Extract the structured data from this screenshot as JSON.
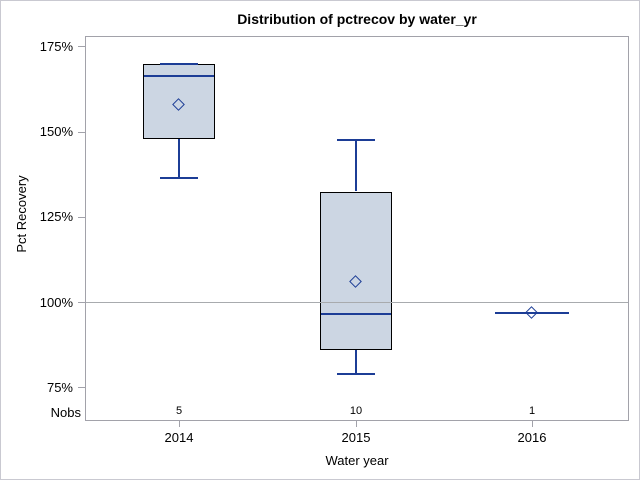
{
  "chart_data": {
    "type": "boxplot",
    "title": "Distribution of pctrecov by water_yr",
    "xlabel": "Water year",
    "ylabel": "Pct Recovery",
    "categories": [
      "2014",
      "2015",
      "2016"
    ],
    "nobs_label": "Nobs",
    "nobs": [
      "5",
      "10",
      "1"
    ],
    "y_ticks": [
      "175%",
      "150%",
      "125%",
      "100%",
      "75%"
    ],
    "y_tick_values": [
      175,
      150,
      125,
      100,
      75
    ],
    "ylim": [
      65.3,
      178.2
    ],
    "reference_line": 100,
    "grid": "off",
    "series": [
      {
        "category": "2014",
        "n": 5,
        "min": 136.5,
        "q1": 148,
        "median": 166.5,
        "q3": 170,
        "max": 170,
        "mean": 158
      },
      {
        "category": "2015",
        "n": 10,
        "min": 79,
        "q1": 86.2,
        "median": 96.8,
        "q3": 132.6,
        "max": 147.6,
        "mean": 106
      },
      {
        "category": "2016",
        "n": 1,
        "min": 97,
        "q1": 97,
        "median": 97,
        "q3": 97,
        "max": 97,
        "mean": 97
      }
    ],
    "colors": {
      "box_fill": "#ccd6e3",
      "box_border": "#000000",
      "whisker": "#1c3d96",
      "mean_marker": "#1c3d96",
      "frame": "#a2a2aa",
      "reference_line": "#a8abae",
      "canvas_border": "#c9c9d1",
      "text": "#000000"
    }
  }
}
